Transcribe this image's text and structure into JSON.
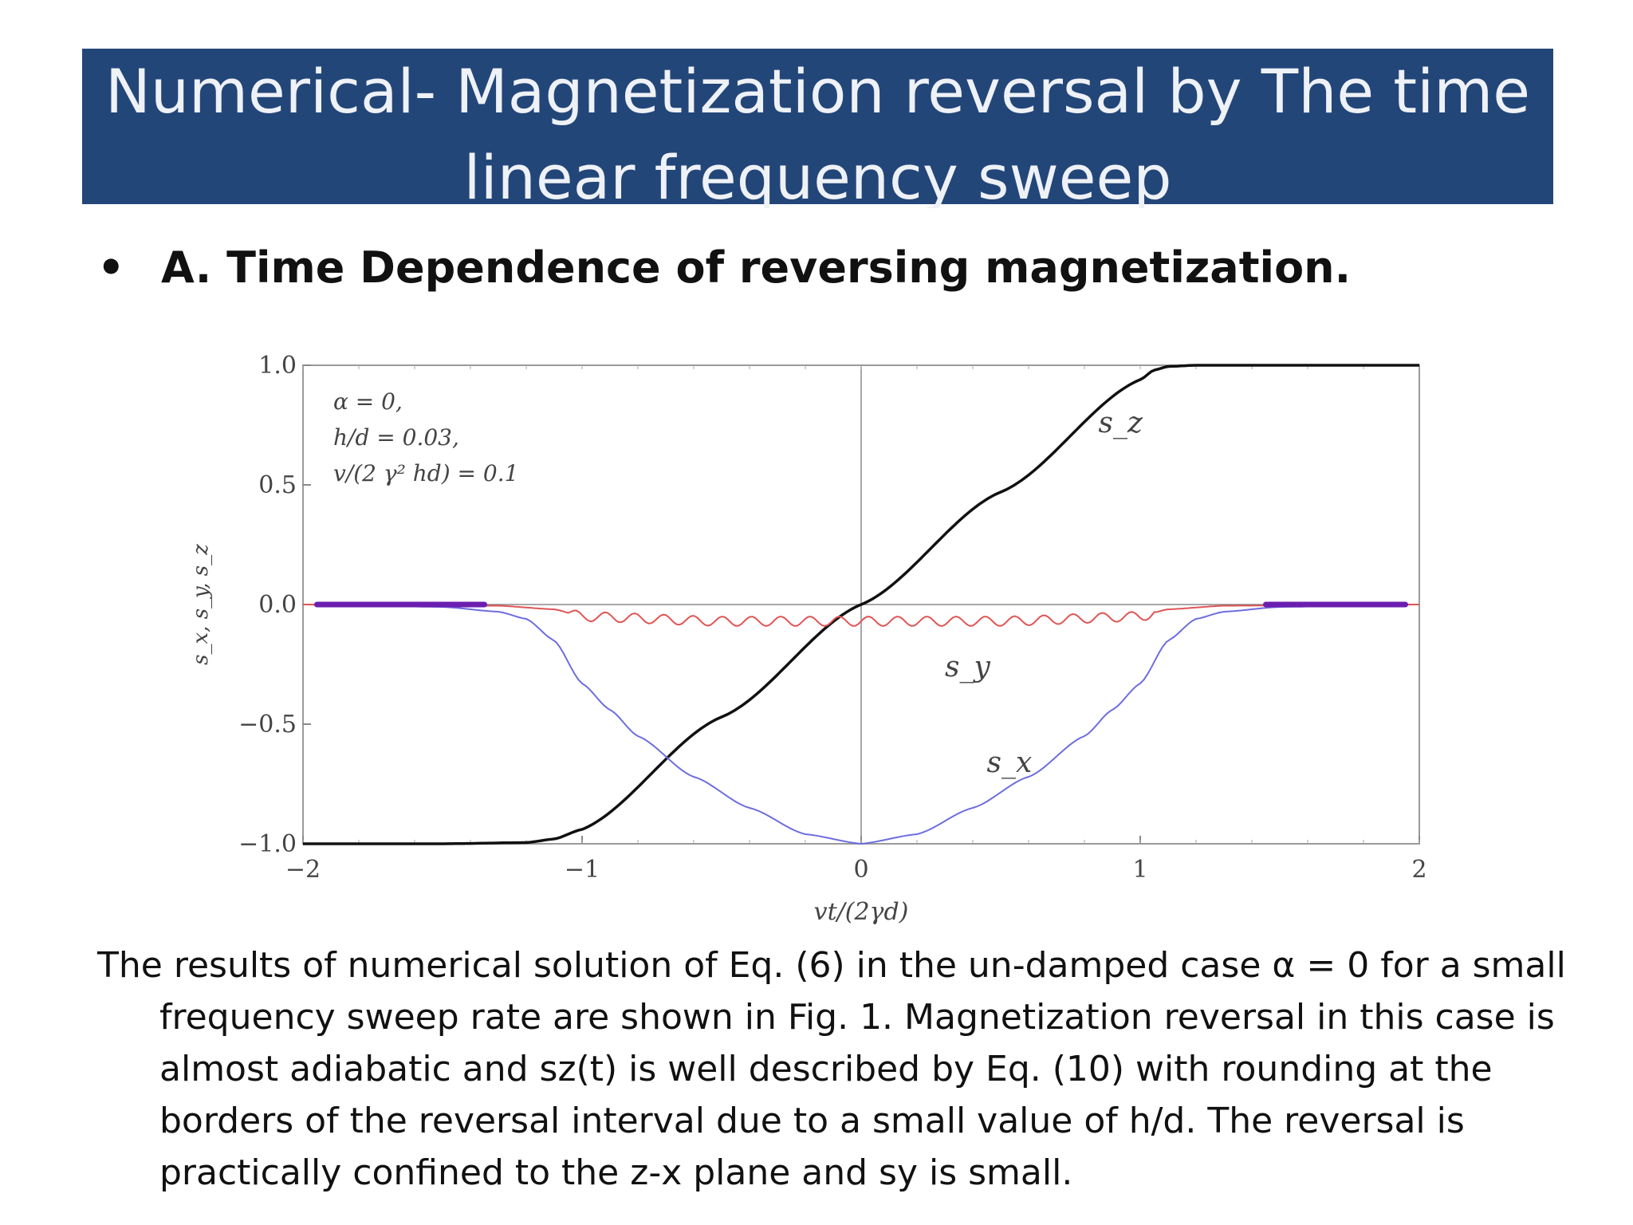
{
  "slide": {
    "title": "Numerical- Magnetization reversal by The time linear frequency sweep",
    "bullet_symbol": "•",
    "bullet": "A.  Time Dependence of reversing magnetization.",
    "caption": "The results of numerical solution of Eq. (6) in the un-damped case α = 0 for a small frequency sweep rate are shown in Fig. 1. Magnetization reversal in this case is almost adiabatic and sz(t) is well described by Eq. (10) with rounding at the borders of the reversal interval due to a small value of h/d. The reversal is practically confined to the z-x plane and sy is small."
  },
  "chart_data": {
    "type": "line",
    "xlabel": "vt/(2γd)",
    "ylabel": "s_x, s_y, s_z",
    "xlim": [
      -2,
      2
    ],
    "ylim": [
      -1,
      1
    ],
    "xticks": [
      "−2",
      "−1",
      "0",
      "1",
      "2"
    ],
    "yticks": [
      "1.0",
      "0.5",
      "0.0",
      "−0.5",
      "−1.0"
    ],
    "annotations": [
      "α = 0,",
      "h/d = 0.03,",
      "v/(2 γ² hd) = 0.1"
    ],
    "series": [
      {
        "name": "s_z",
        "color": "#111111",
        "x": [
          -2,
          -1.5,
          -1.2,
          -1.1,
          -1.0,
          -0.5,
          0,
          0.5,
          1.0,
          1.05,
          1.1,
          1.2,
          1.5,
          2
        ],
        "y": [
          -1,
          -1,
          -0.995,
          -0.98,
          -0.94,
          -0.47,
          0,
          0.47,
          0.94,
          0.98,
          0.995,
          1,
          1,
          1
        ]
      },
      {
        "name": "s_x",
        "color": "#6d6de0",
        "x": [
          -2,
          -1.5,
          -1.3,
          -1.2,
          -1.1,
          -1.0,
          -0.9,
          -0.8,
          -0.6,
          -0.4,
          -0.2,
          0,
          0.2,
          0.4,
          0.6,
          0.8,
          0.9,
          1.0,
          1.1,
          1.2,
          1.3,
          1.5,
          2
        ],
        "y": [
          0,
          -0.01,
          -0.03,
          -0.06,
          -0.15,
          -0.33,
          -0.44,
          -0.55,
          -0.72,
          -0.85,
          -0.96,
          -1.0,
          -0.96,
          -0.85,
          -0.72,
          -0.55,
          -0.44,
          -0.33,
          -0.15,
          -0.06,
          -0.03,
          -0.01,
          0
        ]
      },
      {
        "name": "s_y",
        "color": "#e05555",
        "x": [
          -2,
          -1.3,
          -1.1,
          -1.0,
          -0.5,
          0,
          0.5,
          1.0,
          1.1,
          1.3,
          2
        ],
        "y": [
          0,
          -0.005,
          -0.02,
          -0.05,
          -0.07,
          -0.07,
          -0.07,
          -0.05,
          -0.02,
          -0.005,
          0
        ]
      }
    ],
    "series_labels": [
      "s_z",
      "s_y",
      "s_x"
    ],
    "grid": false,
    "zero_lines": true
  }
}
